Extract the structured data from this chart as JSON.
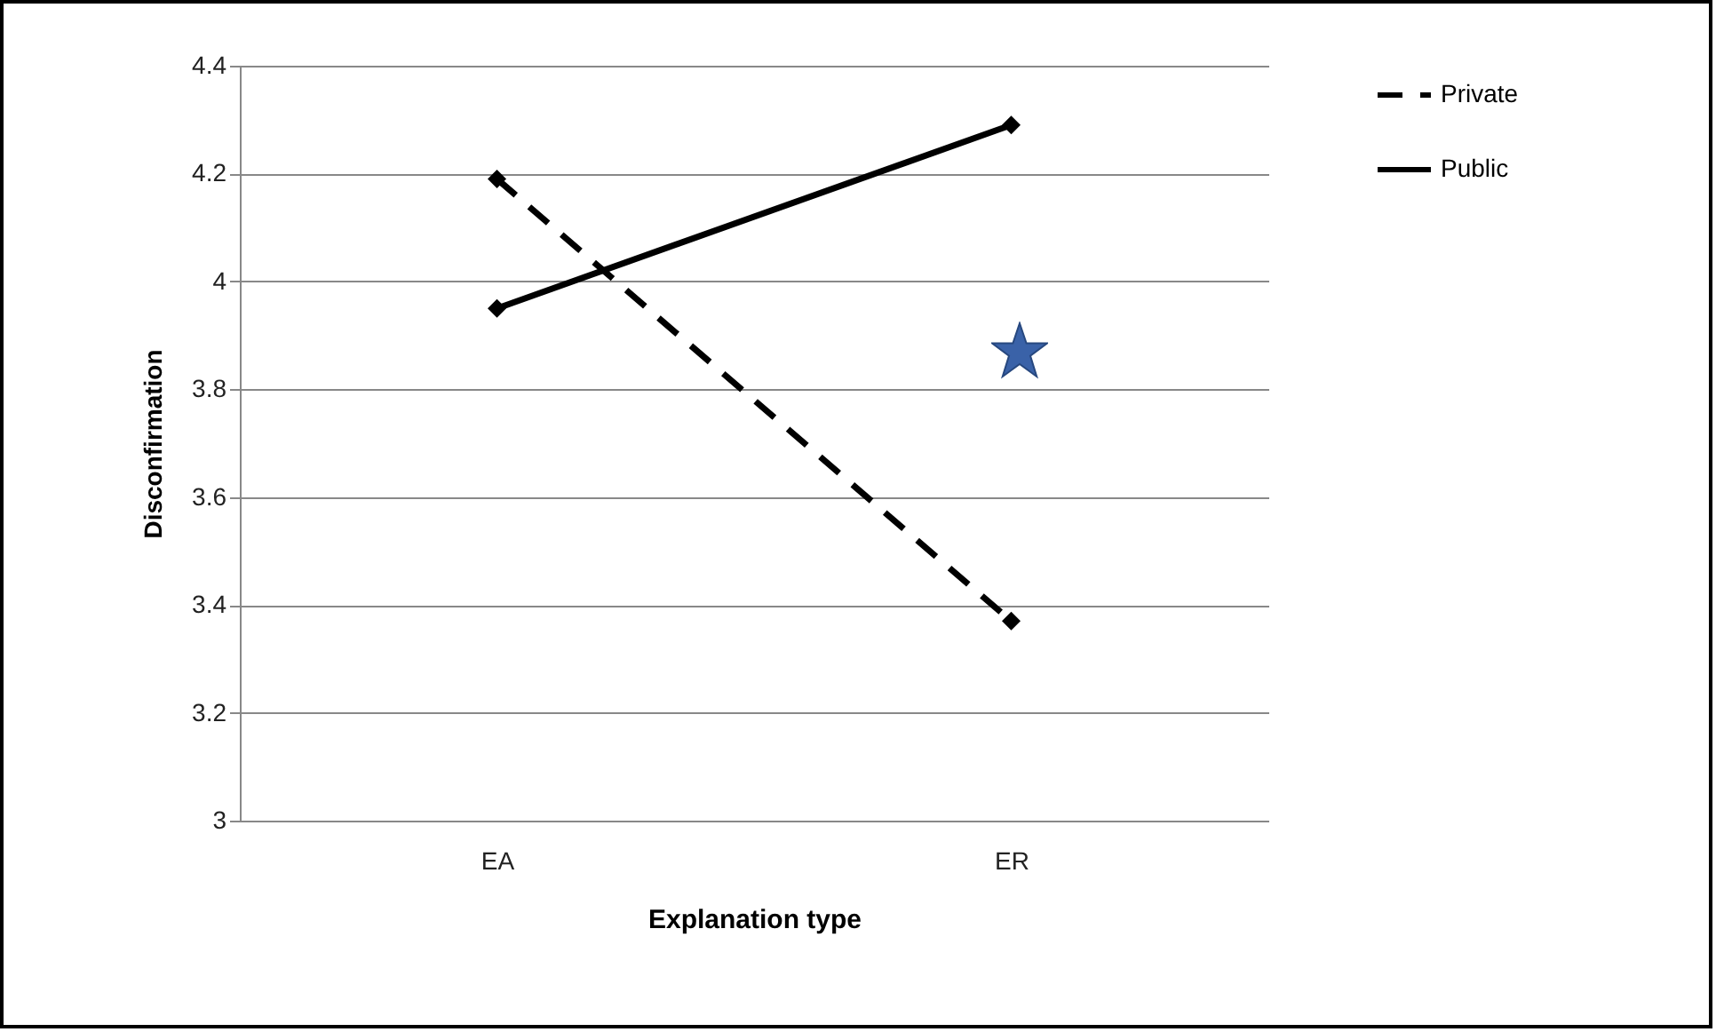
{
  "chart_data": {
    "type": "line",
    "xlabel": "Explanation type",
    "ylabel": "Disconfirmation",
    "categories": [
      "EA",
      "ER"
    ],
    "series": [
      {
        "name": "Private",
        "color": "#000000",
        "line_style": "dashed",
        "values": [
          4.19,
          3.37
        ]
      },
      {
        "name": "Public",
        "color": "#000000",
        "line_style": "solid",
        "values": [
          3.95,
          4.29
        ]
      }
    ],
    "ylim": [
      3,
      4.4
    ],
    "yticks": [
      3,
      3.2,
      3.4,
      3.6,
      3.8,
      4,
      4.2,
      4.4
    ],
    "grid": "y",
    "legend": "right",
    "marker": "diamond"
  }
}
